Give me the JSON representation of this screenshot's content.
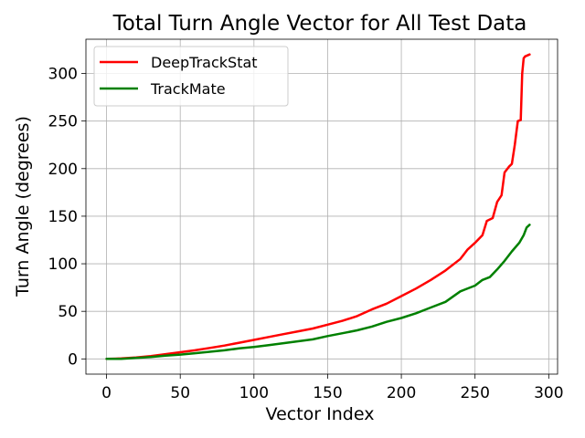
{
  "chart_data": {
    "type": "line",
    "title": "Total Turn Angle Vector for All Test Data",
    "xlabel": "Vector Index",
    "ylabel": "Turn Angle (degrees)",
    "xlim": [
      -14,
      306
    ],
    "ylim": [
      -16,
      336
    ],
    "xticks": [
      0,
      50,
      100,
      150,
      200,
      250,
      300
    ],
    "yticks": [
      0,
      50,
      100,
      150,
      200,
      250,
      300
    ],
    "grid": true,
    "legend_position": "top-left",
    "series": [
      {
        "name": "DeepTrackStat",
        "color": "#ff0000",
        "points": [
          [
            0,
            0
          ],
          [
            10,
            0.5
          ],
          [
            20,
            1.5
          ],
          [
            30,
            3
          ],
          [
            40,
            5
          ],
          [
            50,
            7
          ],
          [
            60,
            9
          ],
          [
            70,
            11.5
          ],
          [
            80,
            14
          ],
          [
            90,
            17
          ],
          [
            100,
            20
          ],
          [
            110,
            23
          ],
          [
            120,
            26
          ],
          [
            130,
            29
          ],
          [
            140,
            32
          ],
          [
            150,
            36
          ],
          [
            160,
            40
          ],
          [
            170,
            45
          ],
          [
            180,
            52
          ],
          [
            190,
            58
          ],
          [
            200,
            66
          ],
          [
            210,
            74
          ],
          [
            220,
            83
          ],
          [
            230,
            93
          ],
          [
            240,
            105
          ],
          [
            245,
            115
          ],
          [
            250,
            122
          ],
          [
            255,
            130
          ],
          [
            258,
            145
          ],
          [
            262,
            148
          ],
          [
            265,
            165
          ],
          [
            268,
            172
          ],
          [
            270,
            196
          ],
          [
            273,
            202
          ],
          [
            275,
            205
          ],
          [
            277,
            225
          ],
          [
            279,
            250
          ],
          [
            281,
            251
          ],
          [
            282,
            300
          ],
          [
            283,
            316
          ],
          [
            284,
            318
          ],
          [
            287,
            320
          ]
        ]
      },
      {
        "name": "TrackMate",
        "color": "#008000",
        "points": [
          [
            0,
            0
          ],
          [
            10,
            0
          ],
          [
            20,
            1
          ],
          [
            30,
            2
          ],
          [
            40,
            3.5
          ],
          [
            50,
            4.5
          ],
          [
            60,
            6
          ],
          [
            70,
            7.5
          ],
          [
            80,
            9
          ],
          [
            90,
            11
          ],
          [
            100,
            12.5
          ],
          [
            110,
            14.5
          ],
          [
            120,
            16.5
          ],
          [
            130,
            18.5
          ],
          [
            140,
            20.5
          ],
          [
            150,
            24
          ],
          [
            160,
            27
          ],
          [
            170,
            30
          ],
          [
            180,
            34
          ],
          [
            190,
            39
          ],
          [
            200,
            43
          ],
          [
            210,
            48
          ],
          [
            220,
            54
          ],
          [
            230,
            60
          ],
          [
            240,
            71
          ],
          [
            250,
            77
          ],
          [
            255,
            83
          ],
          [
            260,
            86
          ],
          [
            265,
            94
          ],
          [
            270,
            103
          ],
          [
            275,
            113
          ],
          [
            280,
            122
          ],
          [
            283,
            130
          ],
          [
            285,
            138
          ],
          [
            287,
            141
          ]
        ]
      }
    ]
  }
}
